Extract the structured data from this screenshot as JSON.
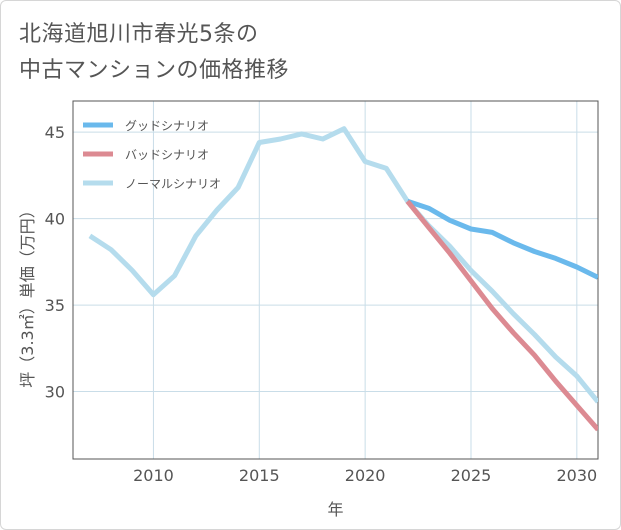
{
  "title_lines": [
    "北海道旭川市春光5条の",
    "中古マンションの価格推移"
  ],
  "chart_data": {
    "type": "line",
    "xlabel": "年",
    "ylabel": "坪（3.3㎡）単価（万円）",
    "xlim": [
      2006.2,
      2031
    ],
    "ylim": [
      26.1,
      46.8
    ],
    "xticks": [
      2010,
      2015,
      2020,
      2025,
      2030
    ],
    "yticks": [
      30,
      35,
      40,
      45
    ],
    "grid": true,
    "legend_position": "top-left",
    "series": [
      {
        "name": "グッドシナリオ",
        "color": "#6ab9ec",
        "x": [
          2022,
          2023,
          2024,
          2025,
          2026,
          2027,
          2028,
          2029,
          2030,
          2031
        ],
        "y": [
          41.0,
          40.6,
          39.9,
          39.4,
          39.2,
          38.6,
          38.1,
          37.7,
          37.2,
          36.6
        ]
      },
      {
        "name": "バッドシナリオ",
        "color": "#dc8a92",
        "x": [
          2022,
          2023,
          2024,
          2025,
          2026,
          2027,
          2028,
          2029,
          2030,
          2031
        ],
        "y": [
          41.0,
          39.5,
          38.0,
          36.4,
          34.8,
          33.4,
          32.1,
          30.6,
          29.2,
          27.8
        ]
      },
      {
        "name": "ノーマルシナリオ",
        "color": "#b5dced",
        "x": [
          2007,
          2008,
          2009,
          2010,
          2011,
          2012,
          2013,
          2014,
          2015,
          2016,
          2017,
          2018,
          2019,
          2020,
          2021,
          2022,
          2023,
          2024,
          2025,
          2026,
          2027,
          2028,
          2029,
          2030,
          2031
        ],
        "y": [
          39.0,
          38.2,
          37.0,
          35.6,
          36.7,
          39.0,
          40.5,
          41.8,
          44.4,
          44.6,
          44.9,
          44.6,
          45.2,
          43.3,
          42.9,
          41.0,
          39.6,
          38.4,
          37.0,
          35.8,
          34.5,
          33.3,
          32.0,
          30.9,
          29.4
        ]
      }
    ]
  }
}
